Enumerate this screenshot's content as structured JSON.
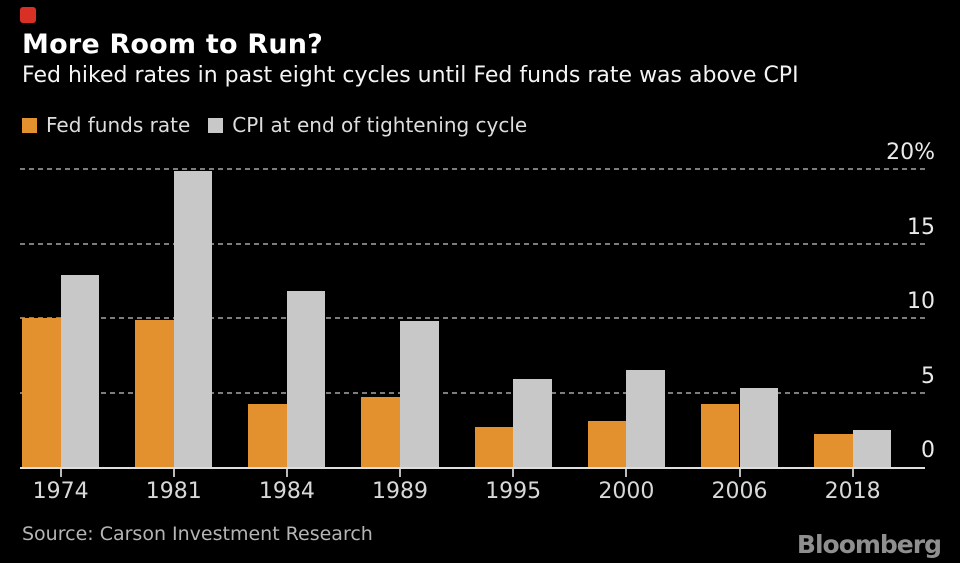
{
  "marker": {
    "color": "#d93025"
  },
  "header": {
    "title": "More Room to Run?",
    "subtitle": "Fed hiked rates in past eight cycles until Fed funds rate was above CPI"
  },
  "legend": [
    {
      "label": "Fed funds rate",
      "color": "#e3902e"
    },
    {
      "label": "CPI at end of tightening cycle",
      "color": "#c8c8c8"
    }
  ],
  "chart_data": {
    "type": "bar",
    "title": "More Room to Run?",
    "subtitle": "Fed hiked rates in past eight cycles until Fed funds rate was above CPI",
    "categories": [
      "1974",
      "1981",
      "1984",
      "1989",
      "1995",
      "2000",
      "2006",
      "2018"
    ],
    "series": [
      {
        "name": "Fed funds rate",
        "color": "#e3902e",
        "values": [
          10.0,
          9.9,
          4.2,
          4.7,
          2.7,
          3.1,
          4.2,
          2.2
        ]
      },
      {
        "name": "CPI at end of tightening cycle",
        "color": "#c8c8c8",
        "values": [
          12.9,
          19.9,
          11.8,
          9.8,
          5.9,
          6.5,
          5.3,
          2.5
        ]
      }
    ],
    "xlabel": "",
    "ylabel": "",
    "ylim": [
      0,
      20
    ],
    "y_ticks": [
      {
        "label": "20%",
        "value": 20
      },
      {
        "label": "15",
        "value": 15
      },
      {
        "label": "10",
        "value": 10
      },
      {
        "label": "5",
        "value": 5
      },
      {
        "label": "0",
        "value": 0
      }
    ],
    "grid": "horizontal-dotted",
    "legend_position": "top-left",
    "value_axis_side": "right",
    "background": "#000000"
  },
  "footer": {
    "source": "Source: Carson Investment Research",
    "brand": "Bloomberg"
  }
}
